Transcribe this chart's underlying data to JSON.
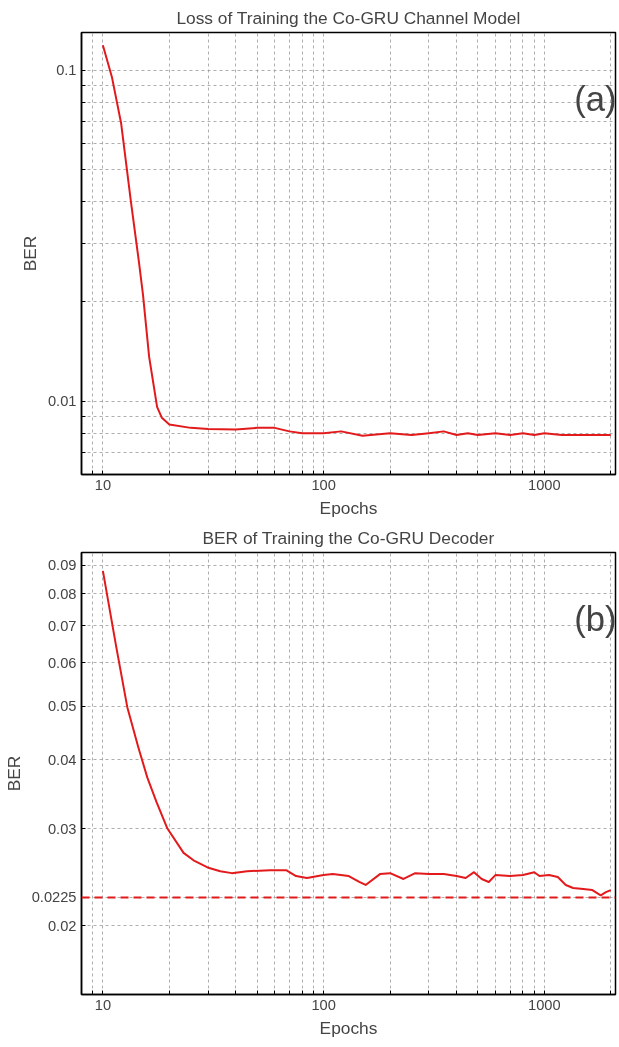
{
  "chart_data": [
    {
      "type": "line",
      "title": "Loss of Training the Co-GRU Channel Model",
      "xlabel": "Epochs",
      "ylabel": "BER",
      "annotations": [
        "(a)"
      ],
      "log": "xy",
      "grid": true,
      "line_style": "solid",
      "marker": "none",
      "xlim": [
        8,
        2100
      ],
      "ylim": [
        0.006,
        0.13
      ],
      "xticks": [
        {
          "value": 9,
          "label": null
        },
        10,
        {
          "value": 20,
          "label": null
        },
        {
          "value": 30,
          "label": null
        },
        {
          "value": 40,
          "label": null
        },
        {
          "value": 50,
          "label": null
        },
        {
          "value": 60,
          "label": null
        },
        {
          "value": 70,
          "label": null
        },
        {
          "value": 80,
          "label": null
        },
        {
          "value": 90,
          "label": null
        },
        100,
        {
          "value": 200,
          "label": null
        },
        {
          "value": 300,
          "label": null
        },
        {
          "value": 400,
          "label": null
        },
        {
          "value": 500,
          "label": null
        },
        {
          "value": 600,
          "label": null
        },
        {
          "value": 700,
          "label": null
        },
        {
          "value": 800,
          "label": null
        },
        {
          "value": 900,
          "label": null
        },
        1000,
        {
          "value": 2000,
          "label": null
        }
      ],
      "yticks": [
        {
          "value": 0.007,
          "label": null
        },
        {
          "value": 0.008,
          "label": null
        },
        {
          "value": 0.009,
          "label": null
        },
        0.01,
        {
          "value": 0.02,
          "label": null
        },
        {
          "value": 0.03,
          "label": null
        },
        {
          "value": 0.04,
          "label": null
        },
        {
          "value": 0.05,
          "label": null
        },
        {
          "value": 0.06,
          "label": null
        },
        {
          "value": 0.07,
          "label": null
        },
        {
          "value": 0.08,
          "label": null
        },
        {
          "value": 0.09,
          "label": null
        },
        0.1
      ],
      "series": [
        {
          "color": "#e31a1c",
          "x": [
            10,
            11,
            12.1,
            13.4,
            14.6,
            15.2,
            16.2,
            17.6,
            18.5,
            20,
            25,
            30,
            40,
            50,
            60,
            70,
            80,
            100,
            120,
            150,
            200,
            250,
            300,
            350,
            400,
            450,
            500,
            600,
            700,
            800,
            900,
            1000,
            1200,
            1500,
            1800,
            2000
          ],
          "values": [
            0.119,
            0.095,
            0.069,
            0.04,
            0.026,
            0.0209,
            0.0136,
            0.0096,
            0.0089,
            0.0085,
            0.0083,
            0.00824,
            0.0082,
            0.0083,
            0.0083,
            0.0081,
            0.008,
            0.008,
            0.0081,
            0.00786,
            0.008,
            0.0079,
            0.008,
            0.0081,
            0.0079,
            0.008,
            0.0079,
            0.008,
            0.0079,
            0.008,
            0.0079,
            0.008,
            0.0079,
            0.0079,
            0.0079,
            0.0079
          ]
        }
      ]
    },
    {
      "type": "line",
      "title": "BER of Training the Co-GRU Decoder",
      "xlabel": "Epochs",
      "ylabel": "BER",
      "annotations": [
        "(b)"
      ],
      "log": "xy",
      "grid": true,
      "line_style": "solid",
      "marker": "none",
      "xlim": [
        8,
        2100
      ],
      "ylim": [
        0.015,
        0.095
      ],
      "xticks": [
        {
          "value": 9,
          "label": null
        },
        10,
        {
          "value": 20,
          "label": null
        },
        {
          "value": 30,
          "label": null
        },
        {
          "value": 40,
          "label": null
        },
        {
          "value": 50,
          "label": null
        },
        {
          "value": 60,
          "label": null
        },
        {
          "value": 70,
          "label": null
        },
        {
          "value": 80,
          "label": null
        },
        {
          "value": 90,
          "label": null
        },
        100,
        {
          "value": 200,
          "label": null
        },
        {
          "value": 300,
          "label": null
        },
        {
          "value": 400,
          "label": null
        },
        {
          "value": 500,
          "label": null
        },
        {
          "value": 600,
          "label": null
        },
        {
          "value": 700,
          "label": null
        },
        {
          "value": 800,
          "label": null
        },
        {
          "value": 900,
          "label": null
        },
        1000,
        {
          "value": 2000,
          "label": null
        }
      ],
      "yticks": [
        0.02,
        0.0225,
        0.03,
        0.04,
        0.05,
        0.06,
        0.07,
        0.08,
        0.09
      ],
      "ref_lines": [
        {
          "axis": "y",
          "value": 0.0225,
          "color": "#e31a1c",
          "line_style": "dashed"
        }
      ],
      "series": [
        {
          "color": "#e31a1c",
          "x": [
            10,
            11.5,
            12.9,
            14.5,
            15.9,
            17.5,
            19.6,
            23.2,
            26,
            29.8,
            34,
            38.4,
            45,
            57.3,
            67.9,
            75,
            84,
            100,
            110,
            130,
            145,
            155,
            180,
            200,
            230,
            260,
            300,
            350,
            400,
            440,
            480,
            520,
            560,
            600,
            700,
            800,
            900,
            950,
            1050,
            1150,
            1250,
            1350,
            1500,
            1650,
            1800,
            1900,
            2000
          ],
          "values": [
            0.088,
            0.064,
            0.0498,
            0.042,
            0.0371,
            0.0335,
            0.03,
            0.0271,
            0.0262,
            0.0255,
            0.0251,
            0.0249,
            0.0251,
            0.0252,
            0.0252,
            0.0246,
            0.0244,
            0.0247,
            0.0248,
            0.0246,
            0.024,
            0.0237,
            0.0248,
            0.0249,
            0.0243,
            0.0249,
            0.0248,
            0.0248,
            0.0246,
            0.0244,
            0.025,
            0.0243,
            0.024,
            0.0247,
            0.0246,
            0.0247,
            0.025,
            0.0246,
            0.0247,
            0.0245,
            0.0237,
            0.0234,
            0.0233,
            0.0232,
            0.0227,
            0.023,
            0.0232
          ]
        }
      ]
    }
  ]
}
